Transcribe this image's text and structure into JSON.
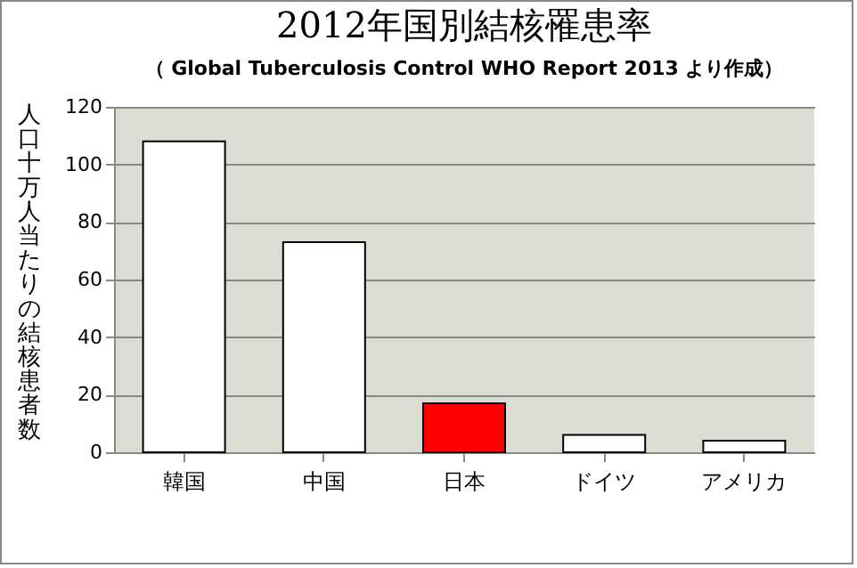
{
  "chart_data": {
    "type": "bar",
    "title": "2012年国別結核罹患率",
    "subtitle": "（ Global Tuberculosis Control WHO Report 2013 より作成）",
    "ylabel": "人口十万人当たりの結核患者数",
    "categories": [
      "韓国",
      "中国",
      "日本",
      "ドイツ",
      "アメリカ"
    ],
    "values": [
      108,
      73,
      17,
      6,
      4
    ],
    "colors": [
      "#ffffff",
      "#ffffff",
      "#ff0000",
      "#ffffff",
      "#ffffff"
    ],
    "ylim": [
      0,
      120
    ],
    "yticks": [
      0,
      20,
      40,
      60,
      80,
      100,
      120
    ],
    "grid": "y"
  }
}
